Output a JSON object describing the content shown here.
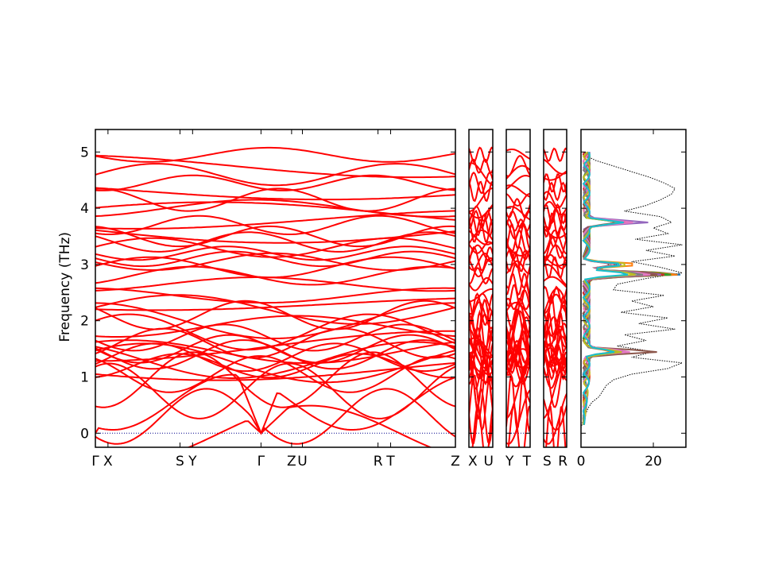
{
  "chart_data": {
    "type": "line",
    "ylabel": "Frequency (THz)",
    "ylim": [
      -0.25,
      5.4
    ],
    "y_ticks": [
      "0",
      "1",
      "2",
      "3",
      "4",
      "5"
    ],
    "band_color": "#ff0000",
    "zero_line_color": "#00008b",
    "panels": [
      {
        "name": "main-path",
        "path_labels": [
          "Γ",
          "X",
          "S",
          "Y",
          "Γ",
          "Z",
          "U",
          "R",
          "T",
          "Z"
        ],
        "label_positions": [
          0.0,
          0.035,
          0.235,
          0.27,
          0.46,
          0.545,
          0.575,
          0.785,
          0.82,
          1.0
        ]
      },
      {
        "name": "x-u",
        "path_labels": [
          "X",
          "U"
        ],
        "label_positions": [
          0.0,
          1.0
        ]
      },
      {
        "name": "y-t",
        "path_labels": [
          "Y",
          "T"
        ],
        "label_positions": [
          0.0,
          1.0
        ]
      },
      {
        "name": "s-r",
        "path_labels": [
          "S",
          "R"
        ],
        "label_positions": [
          0.0,
          1.0
        ]
      }
    ],
    "band_levels_thz": [
      [
        0.0,
        0.3,
        0.55,
        0.75,
        0.95,
        1.05,
        1.15,
        1.2,
        1.25,
        1.3,
        1.35,
        1.4,
        1.45,
        1.5,
        1.55,
        1.6,
        1.7,
        1.8,
        1.9,
        2.0,
        2.1,
        2.2,
        2.3,
        2.45,
        2.65,
        2.8,
        2.95,
        3.05,
        3.1,
        3.2,
        3.3,
        3.4,
        3.5,
        3.6,
        3.7,
        3.8,
        3.9,
        4.0,
        4.15,
        4.3,
        4.45,
        4.6,
        4.75,
        4.95
      ]
    ],
    "dos": {
      "xlim": [
        0,
        29
      ],
      "x_ticks": [
        "0",
        "20"
      ],
      "total_color": "#000000",
      "total": [
        [
          4.95,
          1
        ],
        [
          4.85,
          4
        ],
        [
          4.75,
          9
        ],
        [
          4.65,
          14
        ],
        [
          4.55,
          19
        ],
        [
          4.45,
          23
        ],
        [
          4.35,
          26
        ],
        [
          4.25,
          25
        ],
        [
          4.15,
          22
        ],
        [
          4.05,
          18
        ],
        [
          3.95,
          12
        ],
        [
          3.85,
          22
        ],
        [
          3.75,
          25
        ],
        [
          3.65,
          20
        ],
        [
          3.55,
          24
        ],
        [
          3.45,
          15
        ],
        [
          3.35,
          28
        ],
        [
          3.25,
          18
        ],
        [
          3.15,
          26
        ],
        [
          3.05,
          14
        ],
        [
          2.95,
          22
        ],
        [
          2.85,
          28
        ],
        [
          2.75,
          18
        ],
        [
          2.65,
          10
        ],
        [
          2.55,
          9
        ],
        [
          2.45,
          23
        ],
        [
          2.35,
          14
        ],
        [
          2.25,
          20
        ],
        [
          2.15,
          11
        ],
        [
          2.05,
          24
        ],
        [
          1.95,
          16
        ],
        [
          1.85,
          26
        ],
        [
          1.75,
          12
        ],
        [
          1.65,
          18
        ],
        [
          1.55,
          10
        ],
        [
          1.45,
          20
        ],
        [
          1.35,
          14
        ],
        [
          1.25,
          28
        ],
        [
          1.15,
          24
        ],
        [
          1.05,
          14
        ],
        [
          0.95,
          9
        ],
        [
          0.85,
          7
        ],
        [
          0.75,
          6
        ],
        [
          0.65,
          5
        ],
        [
          0.55,
          3
        ],
        [
          0.45,
          2
        ],
        [
          0.3,
          1
        ],
        [
          0.1,
          0
        ]
      ],
      "partial_colors": [
        "#1f77b4",
        "#ff7f0e",
        "#2ca02c",
        "#d62728",
        "#9467bd",
        "#8c564b",
        "#e377c2",
        "#7f7f7f",
        "#bcbd22",
        "#17becf"
      ],
      "partial_peaks": [
        {
          "e": 2.83,
          "values": [
            27,
            26,
            24,
            22,
            21,
            20,
            18,
            16,
            14,
            12
          ]
        },
        {
          "e": 1.45,
          "values": [
            7,
            8,
            9,
            10,
            11,
            19,
            12,
            10,
            9,
            8
          ]
        },
        {
          "e": 3.75,
          "values": [
            9,
            11,
            10,
            13,
            17,
            8,
            12,
            9,
            10,
            11
          ]
        },
        {
          "e": 3.0,
          "values": [
            10,
            15,
            8,
            9,
            11,
            7,
            8,
            9,
            12,
            10
          ]
        }
      ]
    }
  }
}
